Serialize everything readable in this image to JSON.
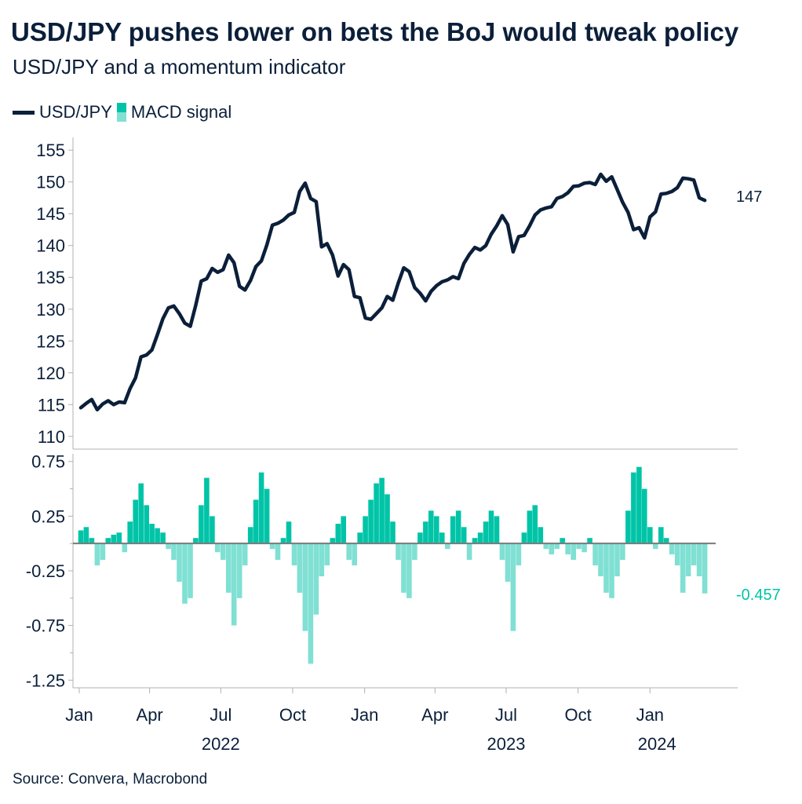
{
  "header": {
    "title": "USD/JPY pushes lower on bets the BoJ would tweak policy",
    "subtitle": "USD/JPY and a momentum indicator"
  },
  "legend": {
    "line_label": "USD/JPY",
    "bar_label": "MACD signal"
  },
  "footer": {
    "source": "Source: Convera, Macrobond"
  },
  "colors": {
    "line": "#0b1f3a",
    "bar_positive": "#00c4a7",
    "bar_negative": "#7fe0d3",
    "axis": "#b0b0b0",
    "zero_line": "#7a7a7a"
  },
  "chart_data": [
    {
      "type": "line",
      "series": [
        {
          "name": "USD/JPY",
          "x": [
            "2022-01-03",
            "2022-01-10",
            "2022-01-17",
            "2022-01-24",
            "2022-01-31",
            "2022-02-07",
            "2022-02-14",
            "2022-02-21",
            "2022-02-28",
            "2022-03-07",
            "2022-03-14",
            "2022-03-21",
            "2022-03-28",
            "2022-04-04",
            "2022-04-11",
            "2022-04-18",
            "2022-04-25",
            "2022-05-02",
            "2022-05-09",
            "2022-05-16",
            "2022-05-23",
            "2022-05-30",
            "2022-06-06",
            "2022-06-13",
            "2022-06-20",
            "2022-06-27",
            "2022-07-04",
            "2022-07-11",
            "2022-07-18",
            "2022-07-25",
            "2022-08-01",
            "2022-08-08",
            "2022-08-15",
            "2022-08-22",
            "2022-08-29",
            "2022-09-05",
            "2022-09-12",
            "2022-09-19",
            "2022-09-26",
            "2022-10-03",
            "2022-10-10",
            "2022-10-17",
            "2022-10-24",
            "2022-10-31",
            "2022-11-07",
            "2022-11-14",
            "2022-11-21",
            "2022-11-28",
            "2022-12-05",
            "2022-12-12",
            "2022-12-19",
            "2022-12-26",
            "2023-01-02",
            "2023-01-09",
            "2023-01-16",
            "2023-01-23",
            "2023-01-30",
            "2023-02-06",
            "2023-02-13",
            "2023-02-20",
            "2023-02-27",
            "2023-03-06",
            "2023-03-13",
            "2023-03-20",
            "2023-03-27",
            "2023-04-03",
            "2023-04-10",
            "2023-04-17",
            "2023-04-24",
            "2023-05-01",
            "2023-05-08",
            "2023-05-15",
            "2023-05-22",
            "2023-05-29",
            "2023-06-05",
            "2023-06-12",
            "2023-06-19",
            "2023-06-26",
            "2023-07-03",
            "2023-07-10",
            "2023-07-17",
            "2023-07-24",
            "2023-07-31",
            "2023-08-07",
            "2023-08-14",
            "2023-08-21",
            "2023-08-28",
            "2023-09-04",
            "2023-09-11",
            "2023-09-18",
            "2023-09-25",
            "2023-10-02",
            "2023-10-09",
            "2023-10-16",
            "2023-10-23",
            "2023-10-30",
            "2023-11-06",
            "2023-11-13",
            "2023-11-20",
            "2023-11-27",
            "2023-12-04",
            "2023-12-11",
            "2023-12-18",
            "2023-12-25",
            "2024-01-01",
            "2024-01-08",
            "2024-01-15",
            "2024-01-22",
            "2024-01-29",
            "2024-02-05",
            "2024-02-12",
            "2024-02-19",
            "2024-02-26",
            "2024-03-04",
            "2024-03-11"
          ],
          "values": [
            114.5,
            115.2,
            115.8,
            114.2,
            115.1,
            115.6,
            115.0,
            115.4,
            115.3,
            117.5,
            119.2,
            122.5,
            122.8,
            123.6,
            126.0,
            128.5,
            130.2,
            130.5,
            129.3,
            127.8,
            127.3,
            130.6,
            134.4,
            134.8,
            136.4,
            135.8,
            136.2,
            138.5,
            137.3,
            133.6,
            133.0,
            134.5,
            136.7,
            137.6,
            140.1,
            143.2,
            143.5,
            144.0,
            144.8,
            145.2,
            148.5,
            149.8,
            147.4,
            146.9,
            139.8,
            140.3,
            138.5,
            135.2,
            137.0,
            136.2,
            132.0,
            131.8,
            128.6,
            128.4,
            129.3,
            130.2,
            132.0,
            131.4,
            134.1,
            136.5,
            135.9,
            133.4,
            132.5,
            131.3,
            132.8,
            133.7,
            134.3,
            134.6,
            135.1,
            134.8,
            137.2,
            138.6,
            139.7,
            139.3,
            140.0,
            141.8,
            143.1,
            144.7,
            143.3,
            139.0,
            141.4,
            141.6,
            143.1,
            144.8,
            145.6,
            145.9,
            146.1,
            147.4,
            147.7,
            148.3,
            149.3,
            149.4,
            149.8,
            149.9,
            149.6,
            151.2,
            150.1,
            150.8,
            148.8,
            146.8,
            145.2,
            142.5,
            142.8,
            141.2,
            144.5,
            145.3,
            148.1,
            148.2,
            148.5,
            149.1,
            150.6,
            150.5,
            150.3,
            147.5,
            147.1
          ]
        }
      ],
      "ylim": [
        108,
        157
      ],
      "yticks": [
        155,
        150,
        145,
        140,
        135,
        130,
        125,
        120,
        115,
        110
      ],
      "end_label": "147"
    },
    {
      "type": "bar",
      "series": [
        {
          "name": "MACD signal",
          "x": [
            "2022-01-03",
            "2022-01-10",
            "2022-01-17",
            "2022-01-24",
            "2022-01-31",
            "2022-02-07",
            "2022-02-14",
            "2022-02-21",
            "2022-02-28",
            "2022-03-07",
            "2022-03-14",
            "2022-03-21",
            "2022-03-28",
            "2022-04-04",
            "2022-04-11",
            "2022-04-18",
            "2022-04-25",
            "2022-05-02",
            "2022-05-09",
            "2022-05-16",
            "2022-05-23",
            "2022-05-30",
            "2022-06-06",
            "2022-06-13",
            "2022-06-20",
            "2022-06-27",
            "2022-07-04",
            "2022-07-11",
            "2022-07-18",
            "2022-07-25",
            "2022-08-01",
            "2022-08-08",
            "2022-08-15",
            "2022-08-22",
            "2022-08-29",
            "2022-09-05",
            "2022-09-12",
            "2022-09-19",
            "2022-09-26",
            "2022-10-03",
            "2022-10-10",
            "2022-10-17",
            "2022-10-24",
            "2022-10-31",
            "2022-11-07",
            "2022-11-14",
            "2022-11-21",
            "2022-11-28",
            "2022-12-05",
            "2022-12-12",
            "2022-12-19",
            "2022-12-26",
            "2023-01-02",
            "2023-01-09",
            "2023-01-16",
            "2023-01-23",
            "2023-01-30",
            "2023-02-06",
            "2023-02-13",
            "2023-02-20",
            "2023-02-27",
            "2023-03-06",
            "2023-03-13",
            "2023-03-20",
            "2023-03-27",
            "2023-04-03",
            "2023-04-10",
            "2023-04-17",
            "2023-04-24",
            "2023-05-01",
            "2023-05-08",
            "2023-05-15",
            "2023-05-22",
            "2023-05-29",
            "2023-06-05",
            "2023-06-12",
            "2023-06-19",
            "2023-06-26",
            "2023-07-03",
            "2023-07-10",
            "2023-07-17",
            "2023-07-24",
            "2023-07-31",
            "2023-08-07",
            "2023-08-14",
            "2023-08-21",
            "2023-08-28",
            "2023-09-04",
            "2023-09-11",
            "2023-09-18",
            "2023-09-25",
            "2023-10-02",
            "2023-10-09",
            "2023-10-16",
            "2023-10-23",
            "2023-10-30",
            "2023-11-06",
            "2023-11-13",
            "2023-11-20",
            "2023-11-27",
            "2023-12-04",
            "2023-12-11",
            "2023-12-18",
            "2023-12-25",
            "2024-01-01",
            "2024-01-08",
            "2024-01-15",
            "2024-01-22",
            "2024-01-29",
            "2024-02-05",
            "2024-02-12",
            "2024-02-19",
            "2024-02-26",
            "2024-03-04",
            "2024-03-11"
          ],
          "values": [
            0.12,
            0.15,
            0.05,
            -0.2,
            -0.15,
            0.05,
            0.08,
            0.1,
            -0.08,
            0.2,
            0.4,
            0.55,
            0.35,
            0.18,
            0.14,
            0.1,
            -0.05,
            -0.15,
            -0.35,
            -0.55,
            -0.5,
            0.05,
            0.35,
            0.6,
            0.25,
            -0.08,
            -0.15,
            -0.45,
            -0.75,
            -0.5,
            -0.2,
            0.15,
            0.4,
            0.65,
            0.5,
            -0.05,
            -0.15,
            0.05,
            0.2,
            -0.2,
            -0.45,
            -0.8,
            -1.1,
            -0.65,
            -0.3,
            -0.2,
            0.05,
            0.18,
            0.25,
            -0.15,
            -0.2,
            0.1,
            0.25,
            0.4,
            0.55,
            0.6,
            0.45,
            0.2,
            -0.15,
            -0.45,
            -0.5,
            -0.15,
            0.1,
            0.2,
            0.3,
            0.25,
            0.1,
            -0.05,
            0.25,
            0.3,
            0.15,
            -0.15,
            0.05,
            0.1,
            0.2,
            0.3,
            0.25,
            -0.15,
            -0.35,
            -0.8,
            -0.2,
            0.1,
            0.3,
            0.35,
            0.15,
            -0.05,
            -0.1,
            -0.05,
            0.05,
            -0.1,
            -0.15,
            -0.05,
            -0.08,
            0.05,
            -0.2,
            -0.3,
            -0.45,
            -0.5,
            -0.3,
            -0.15,
            0.3,
            0.65,
            0.7,
            0.5,
            0.15,
            -0.05,
            0.15,
            0.05,
            -0.1,
            -0.2,
            -0.45,
            -0.3,
            -0.2,
            -0.3,
            -0.457
          ]
        }
      ],
      "ylim": [
        -1.32,
        0.82
      ],
      "yticks": [
        "0.75",
        "0.25",
        "-0.25",
        "-0.75",
        "-1.25"
      ],
      "ytick_values": [
        0.75,
        0.25,
        -0.25,
        -0.75,
        -1.25
      ],
      "end_label": "-0.457"
    }
  ],
  "x_axis": {
    "ticks": [
      {
        "label": "Jan",
        "date": "2022-01-01"
      },
      {
        "label": "Apr",
        "date": "2022-04-01"
      },
      {
        "label": "Jul",
        "date": "2022-07-01"
      },
      {
        "label": "Oct",
        "date": "2022-10-01"
      },
      {
        "label": "Jan",
        "date": "2023-01-01"
      },
      {
        "label": "Apr",
        "date": "2023-04-01"
      },
      {
        "label": "Jul",
        "date": "2023-07-01"
      },
      {
        "label": "Oct",
        "date": "2023-10-01"
      },
      {
        "label": "Jan",
        "date": "2024-01-01"
      }
    ],
    "years": [
      {
        "label": "2022",
        "date": "2022-07-01"
      },
      {
        "label": "2023",
        "date": "2023-07-01"
      },
      {
        "label": "2024",
        "date": "2024-01-10"
      }
    ],
    "range": [
      "2021-12-24",
      "2024-03-25"
    ]
  }
}
